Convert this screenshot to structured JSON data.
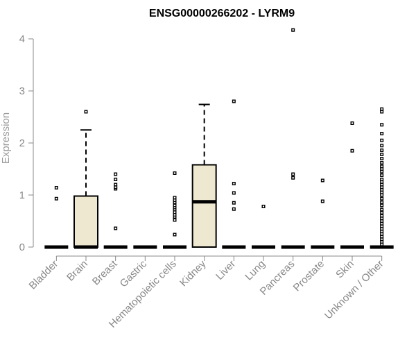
{
  "chart_data": {
    "type": "boxplot",
    "title": "ENSG00000266202 - LYRM9",
    "ylabel": "Expression",
    "xlabel": "",
    "ylim": [
      0,
      4.2
    ],
    "yticks": [
      0,
      1,
      2,
      3,
      4
    ],
    "categories": [
      "Bladder",
      "Brain",
      "Breast",
      "Gastric",
      "Hematopoietic cells",
      "Kidney",
      "Liver",
      "Lung",
      "Pancreas",
      "Prostate",
      "Skin",
      "Unknown / Other"
    ],
    "box_fill": "#efe8d0",
    "box_stroke": "#000000",
    "boxes": [
      {
        "category": "Bladder",
        "q1": 0,
        "median": 0,
        "q3": 0,
        "whisker_low": 0,
        "whisker_high": 0,
        "outliers": [
          0.93,
          1.14
        ]
      },
      {
        "category": "Brain",
        "q1": 0,
        "median": 0,
        "q3": 0.98,
        "whisker_low": 0,
        "whisker_high": 2.25,
        "outliers": [
          2.6
        ]
      },
      {
        "category": "Breast",
        "q1": 0,
        "median": 0,
        "q3": 0,
        "whisker_low": 0,
        "whisker_high": 0,
        "outliers": [
          0.36,
          1.12,
          1.15,
          1.2,
          1.3,
          1.4
        ]
      },
      {
        "category": "Gastric",
        "q1": 0,
        "median": 0,
        "q3": 0,
        "whisker_low": 0,
        "whisker_high": 0,
        "outliers": []
      },
      {
        "category": "Hematopoietic cells",
        "q1": 0,
        "median": 0,
        "q3": 0,
        "whisker_low": 0,
        "whisker_high": 0,
        "outliers": [
          0.24,
          0.52,
          0.58,
          0.62,
          0.67,
          0.72,
          0.76,
          0.8,
          0.86,
          0.9,
          0.95,
          1.42
        ]
      },
      {
        "category": "Kidney",
        "q1": 0,
        "median": 0.87,
        "q3": 1.58,
        "whisker_low": 0,
        "whisker_high": 2.74,
        "outliers": []
      },
      {
        "category": "Liver",
        "q1": 0,
        "median": 0,
        "q3": 0,
        "whisker_low": 0,
        "whisker_high": 0,
        "outliers": [
          0.73,
          0.85,
          1.04,
          1.22,
          2.8
        ]
      },
      {
        "category": "Lung",
        "q1": 0,
        "median": 0,
        "q3": 0,
        "whisker_low": 0,
        "whisker_high": 0,
        "outliers": [
          0.78
        ]
      },
      {
        "category": "Pancreas",
        "q1": 0,
        "median": 0,
        "q3": 0,
        "whisker_low": 0,
        "whisker_high": 0,
        "outliers": [
          1.33,
          1.4,
          4.17
        ]
      },
      {
        "category": "Prostate",
        "q1": 0,
        "median": 0,
        "q3": 0,
        "whisker_low": 0,
        "whisker_high": 0,
        "outliers": [
          0.88,
          1.28
        ]
      },
      {
        "category": "Skin",
        "q1": 0,
        "median": 0,
        "q3": 0,
        "whisker_low": 0,
        "whisker_high": 0,
        "outliers": [
          1.85,
          2.38
        ]
      },
      {
        "category": "Unknown / Other",
        "q1": 0,
        "median": 0,
        "q3": 0,
        "whisker_low": 0,
        "whisker_high": 0,
        "outliers": [
          0.05,
          0.1,
          0.15,
          0.2,
          0.25,
          0.3,
          0.35,
          0.4,
          0.45,
          0.5,
          0.55,
          0.6,
          0.66,
          0.72,
          0.8,
          0.86,
          0.93,
          1.0,
          1.05,
          1.1,
          1.15,
          1.2,
          1.25,
          1.3,
          1.38,
          1.45,
          1.5,
          1.55,
          1.62,
          1.7,
          1.78,
          1.86,
          1.95,
          2.05,
          2.18,
          2.35,
          2.6,
          2.65
        ]
      }
    ],
    "grid": false,
    "legend": "none"
  }
}
